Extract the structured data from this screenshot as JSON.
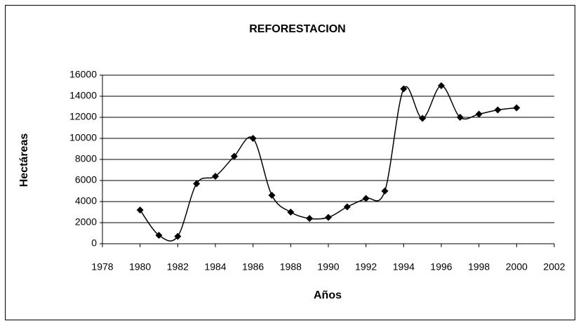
{
  "chart_data": {
    "type": "scatter",
    "title": "REFORESTACION",
    "x_label": "Años",
    "y_label": "Hectáreas",
    "series": [
      {
        "name": "Reforestación",
        "color": "#000000",
        "x": [
          1980,
          1981,
          1982,
          1983,
          1984,
          1985,
          1986,
          1987,
          1988,
          1989,
          1990,
          1991,
          1992,
          1993,
          1994,
          1995,
          1996,
          1997,
          1998,
          1999,
          2000
        ],
        "values": [
          3200,
          800,
          700,
          5700,
          6400,
          8300,
          10000,
          4600,
          3000,
          2400,
          2500,
          3500,
          4300,
          5000,
          14700,
          11900,
          15000,
          12000,
          12300,
          12700,
          12900
        ]
      }
    ],
    "xlim": [
      1978,
      2002
    ],
    "xticks": [
      1978,
      1980,
      1982,
      1984,
      1986,
      1988,
      1990,
      1992,
      1994,
      1996,
      1998,
      2000,
      2002
    ],
    "ylim": [
      0,
      16000
    ],
    "yticks": [
      0,
      2000,
      4000,
      6000,
      8000,
      10000,
      12000,
      14000,
      16000
    ],
    "grid": true,
    "smooth": true
  }
}
